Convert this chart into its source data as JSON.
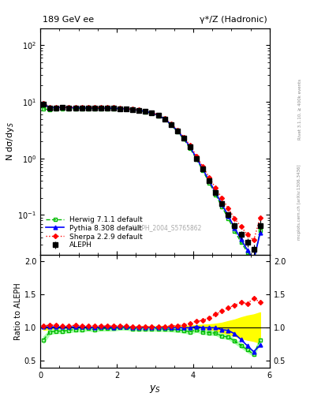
{
  "title_left": "189 GeV ee",
  "title_right": "γ*/Z (Hadronic)",
  "ylabel_main": "N dσ/dy$_S$",
  "ylabel_ratio": "Ratio to ALEPH",
  "xlabel": "$y_S$",
  "right_label_top": "Rivet 3.1.10, ≥ 400k events",
  "right_label_bottom": "mcplots.cern.ch [arXiv:1306.3436]",
  "watermark": "ALEPH_2004_S5765862",
  "aleph_x": [
    0.083,
    0.25,
    0.417,
    0.583,
    0.75,
    0.917,
    1.083,
    1.25,
    1.417,
    1.583,
    1.75,
    1.917,
    2.083,
    2.25,
    2.417,
    2.583,
    2.75,
    2.917,
    3.083,
    3.25,
    3.417,
    3.583,
    3.75,
    3.917,
    4.083,
    4.25,
    4.417,
    4.583,
    4.75,
    4.917,
    5.083,
    5.25,
    5.417,
    5.583,
    5.75
  ],
  "aleph_y": [
    9.2,
    7.8,
    7.8,
    7.9,
    7.8,
    7.8,
    7.8,
    7.7,
    7.8,
    7.7,
    7.7,
    7.7,
    7.5,
    7.4,
    7.3,
    7.1,
    6.8,
    6.4,
    5.8,
    5.0,
    4.0,
    3.1,
    2.3,
    1.6,
    1.0,
    0.65,
    0.4,
    0.25,
    0.16,
    0.1,
    0.065,
    0.045,
    0.033,
    0.025,
    0.065
  ],
  "aleph_yerr": [
    0.3,
    0.15,
    0.12,
    0.12,
    0.12,
    0.12,
    0.12,
    0.12,
    0.12,
    0.12,
    0.12,
    0.12,
    0.12,
    0.12,
    0.12,
    0.12,
    0.12,
    0.12,
    0.12,
    0.12,
    0.1,
    0.08,
    0.06,
    0.05,
    0.04,
    0.03,
    0.02,
    0.015,
    0.012,
    0.01,
    0.008,
    0.007,
    0.006,
    0.005,
    0.015
  ],
  "herwig_x": [
    0.083,
    0.25,
    0.417,
    0.583,
    0.75,
    0.917,
    1.083,
    1.25,
    1.417,
    1.583,
    1.75,
    1.917,
    2.083,
    2.25,
    2.417,
    2.583,
    2.75,
    2.917,
    3.083,
    3.25,
    3.417,
    3.583,
    3.75,
    3.917,
    4.083,
    4.25,
    4.417,
    4.583,
    4.75,
    4.917,
    5.083,
    5.25,
    5.417,
    5.583,
    5.75
  ],
  "herwig_y": [
    7.5,
    7.3,
    7.4,
    7.5,
    7.5,
    7.6,
    7.6,
    7.6,
    7.6,
    7.6,
    7.6,
    7.6,
    7.5,
    7.4,
    7.2,
    7.0,
    6.7,
    6.3,
    5.7,
    4.9,
    3.9,
    3.0,
    2.2,
    1.5,
    0.97,
    0.61,
    0.37,
    0.23,
    0.14,
    0.086,
    0.052,
    0.033,
    0.022,
    0.015,
    0.053
  ],
  "pythia_x": [
    0.083,
    0.25,
    0.417,
    0.583,
    0.75,
    0.917,
    1.083,
    1.25,
    1.417,
    1.583,
    1.75,
    1.917,
    2.083,
    2.25,
    2.417,
    2.583,
    2.75,
    2.917,
    3.083,
    3.25,
    3.417,
    3.583,
    3.75,
    3.917,
    4.083,
    4.25,
    4.417,
    4.583,
    4.75,
    4.917,
    5.083,
    5.25,
    5.417,
    5.583,
    5.75
  ],
  "pythia_y": [
    9.3,
    7.9,
    7.9,
    8.0,
    7.9,
    7.9,
    7.9,
    7.8,
    7.8,
    7.8,
    7.8,
    7.7,
    7.6,
    7.5,
    7.3,
    7.1,
    6.8,
    6.4,
    5.8,
    5.0,
    4.0,
    3.1,
    2.3,
    1.6,
    1.02,
    0.65,
    0.4,
    0.25,
    0.155,
    0.096,
    0.059,
    0.037,
    0.024,
    0.016,
    0.048
  ],
  "sherpa_x": [
    0.083,
    0.25,
    0.417,
    0.583,
    0.75,
    0.917,
    1.083,
    1.25,
    1.417,
    1.583,
    1.75,
    1.917,
    2.083,
    2.25,
    2.417,
    2.583,
    2.75,
    2.917,
    3.083,
    3.25,
    3.417,
    3.583,
    3.75,
    3.917,
    4.083,
    4.25,
    4.417,
    4.583,
    4.75,
    4.917,
    5.083,
    5.25,
    5.417,
    5.583,
    5.75
  ],
  "sherpa_y": [
    9.5,
    8.1,
    8.1,
    8.1,
    8.0,
    8.1,
    8.0,
    7.9,
    8.0,
    7.9,
    7.9,
    7.9,
    7.7,
    7.6,
    7.4,
    7.2,
    6.9,
    6.5,
    5.9,
    5.1,
    4.1,
    3.2,
    2.4,
    1.7,
    1.1,
    0.72,
    0.46,
    0.3,
    0.2,
    0.13,
    0.087,
    0.062,
    0.045,
    0.036,
    0.09
  ],
  "herwig_ratio": [
    0.82,
    0.935,
    0.95,
    0.948,
    0.962,
    0.974,
    0.974,
    0.987,
    0.974,
    0.987,
    0.987,
    0.987,
    1.0,
    1.0,
    0.986,
    0.986,
    0.985,
    0.984,
    0.983,
    0.98,
    0.975,
    0.968,
    0.957,
    0.938,
    0.97,
    0.938,
    0.925,
    0.92,
    0.875,
    0.86,
    0.8,
    0.733,
    0.667,
    0.6,
    0.815
  ],
  "pythia_ratio": [
    1.01,
    1.013,
    1.013,
    1.013,
    1.013,
    1.013,
    1.013,
    1.013,
    1.0,
    1.013,
    1.013,
    1.0,
    1.013,
    1.013,
    1.0,
    1.0,
    1.0,
    1.0,
    1.0,
    1.0,
    1.0,
    1.0,
    1.0,
    1.0,
    1.02,
    1.0,
    1.0,
    1.0,
    0.97,
    0.96,
    0.908,
    0.822,
    0.727,
    0.64,
    0.738
  ],
  "sherpa_ratio": [
    1.032,
    1.038,
    1.038,
    1.025,
    1.026,
    1.038,
    1.026,
    1.026,
    1.026,
    1.026,
    1.026,
    1.026,
    1.027,
    1.027,
    1.014,
    1.014,
    1.015,
    1.016,
    1.017,
    1.02,
    1.025,
    1.032,
    1.043,
    1.063,
    1.1,
    1.108,
    1.15,
    1.2,
    1.25,
    1.3,
    1.338,
    1.378,
    1.364,
    1.44,
    1.385
  ],
  "herwig_band_upper": [
    0.87,
    0.965,
    0.978,
    0.978,
    0.992,
    1.004,
    1.004,
    1.017,
    1.004,
    1.017,
    1.017,
    1.017,
    1.03,
    1.03,
    1.016,
    1.016,
    1.015,
    1.014,
    1.013,
    1.01,
    1.005,
    0.998,
    0.987,
    0.968,
    1.0,
    0.968,
    0.955,
    0.95,
    0.905,
    0.89,
    0.83,
    0.763,
    0.697,
    0.63,
    0.845
  ],
  "herwig_band_lower": [
    0.77,
    0.905,
    0.922,
    0.918,
    0.932,
    0.944,
    0.944,
    0.957,
    0.944,
    0.957,
    0.957,
    0.957,
    0.97,
    0.97,
    0.956,
    0.956,
    0.955,
    0.954,
    0.953,
    0.95,
    0.945,
    0.938,
    0.927,
    0.908,
    0.94,
    0.908,
    0.895,
    0.89,
    0.845,
    0.83,
    0.77,
    0.703,
    0.637,
    0.57,
    0.785
  ],
  "pythia_band_upper": [
    1.04,
    1.043,
    1.043,
    1.043,
    1.043,
    1.043,
    1.043,
    1.043,
    1.03,
    1.043,
    1.043,
    1.03,
    1.043,
    1.043,
    1.03,
    1.03,
    1.03,
    1.03,
    1.03,
    1.03,
    1.03,
    1.03,
    1.03,
    1.03,
    1.05,
    1.03,
    1.03,
    1.03,
    1.0,
    0.99,
    0.938,
    0.852,
    0.757,
    0.67,
    0.768
  ],
  "pythia_band_lower": [
    0.98,
    0.983,
    0.983,
    0.983,
    0.983,
    0.983,
    0.983,
    0.983,
    0.97,
    0.983,
    0.983,
    0.97,
    0.983,
    0.983,
    0.97,
    0.97,
    0.97,
    0.97,
    0.97,
    0.97,
    0.97,
    0.97,
    0.97,
    0.97,
    0.99,
    0.97,
    0.97,
    0.97,
    0.94,
    0.93,
    0.878,
    0.792,
    0.697,
    0.61,
    0.708
  ],
  "xlim": [
    0,
    6
  ],
  "main_ylim_log": [
    0.02,
    200
  ],
  "ratio_ylim": [
    0.4,
    2.1
  ],
  "ratio_yticks": [
    0.5,
    1.0,
    1.5,
    2.0
  ],
  "color_aleph": "#000000",
  "color_herwig": "#00bb00",
  "color_pythia": "#0000ff",
  "color_sherpa": "#ff0000",
  "herwig_band_color": "#aaffaa",
  "yellow_band_color": "#ffff00",
  "bg_color": "#ffffff"
}
